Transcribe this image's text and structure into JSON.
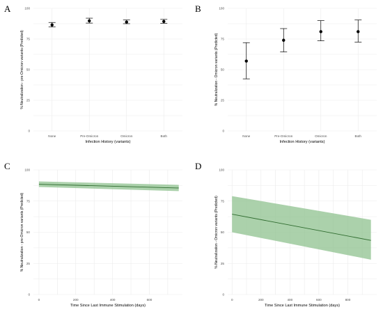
{
  "panels": [
    {
      "letter": "A",
      "chart_data": {
        "type": "scatter",
        "categories": [
          "None",
          "Pre-Omicron",
          "Omicron",
          "Both"
        ],
        "values": [
          86.5,
          89.8,
          88.8,
          89.3
        ],
        "lower": [
          84.8,
          88.0,
          87.5,
          87.8
        ],
        "upper": [
          88.5,
          92.0,
          90.5,
          91.0
        ],
        "xlabel": "Infection History (variants)",
        "ylabel": "% Neutralization - pre-Omicron variants (Predicted)",
        "ylim": [
          0,
          100
        ],
        "yticks": [
          "0",
          "25",
          "50",
          "75",
          "100"
        ],
        "grid": true,
        "error_bars": true
      }
    },
    {
      "letter": "B",
      "chart_data": {
        "type": "scatter",
        "categories": [
          "None",
          "Pre-Omicron",
          "Omicron",
          "Both"
        ],
        "values": [
          57,
          74,
          81,
          81
        ],
        "lower": [
          42.5,
          64.5,
          73.5,
          72.5
        ],
        "upper": [
          72,
          83.5,
          90,
          90.5
        ],
        "xlabel": "Infection History (variants)",
        "ylabel": "% Neutralization - Omicron variants (Predicted)",
        "ylim": [
          0,
          100
        ],
        "yticks": [
          "0",
          "25",
          "50",
          "75",
          "100"
        ],
        "grid": true,
        "error_bars": true
      }
    },
    {
      "letter": "C",
      "chart_data": {
        "type": "area",
        "x": [
          0,
          760
        ],
        "values": [
          88.5,
          85.5
        ],
        "lower": [
          86.3,
          83.0
        ],
        "upper": [
          90.8,
          88.0
        ],
        "xlim": [
          -30,
          780
        ],
        "xticks": [
          0,
          200,
          400,
          600
        ],
        "xlabel": "Time Since Last Immune Stimulation (days)",
        "ylabel": "% Neutralization - pre-Omicron variants (Predicted)",
        "ylim": [
          0,
          100
        ],
        "yticks": [
          "0",
          "25",
          "50",
          "75",
          "100"
        ],
        "grid": true
      }
    },
    {
      "letter": "D",
      "chart_data": {
        "type": "area",
        "x": [
          0,
          960
        ],
        "values": [
          64.5,
          43.5
        ],
        "lower": [
          50,
          28
        ],
        "upper": [
          79,
          60
        ],
        "xlim": [
          -30,
          1000
        ],
        "xticks": [
          0,
          200,
          400,
          600,
          800
        ],
        "xlabel": "Time Since Last Immune Stimulation (days)",
        "ylabel": "% Neutralization - Omicron variants (Predicted)",
        "ylim": [
          0,
          100
        ],
        "yticks": [
          "0",
          "25",
          "50",
          "75",
          "100"
        ],
        "grid": true
      }
    }
  ],
  "colors": {
    "point": "#000000",
    "errorbar": "#000000",
    "line": "#2e6b2e",
    "band": "#8fc18f",
    "grid": "#ebebeb",
    "tick": "#4d4d4d"
  }
}
